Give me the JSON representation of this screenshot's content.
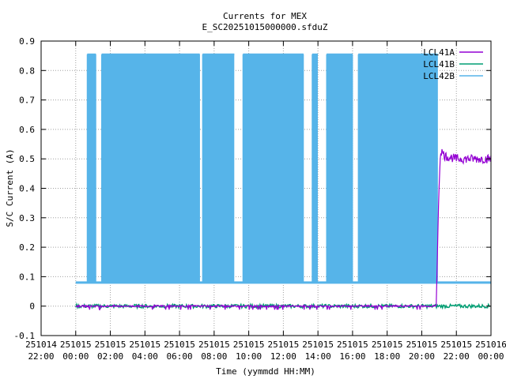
{
  "chart_data": {
    "type": "line",
    "title": "Currents for MEX",
    "subtitle": "E_SC20251015000000.sfduZ",
    "xlabel": "Time (yymmdd HH:MM)",
    "ylabel": "S/C Current (A)",
    "xlim": [
      "251014 22:00",
      "251016 00:00"
    ],
    "ylim": [
      -0.1,
      0.9
    ],
    "grid": true,
    "legend_position": "top-right",
    "x_ticks": [
      {
        "date": "251014",
        "time": "22:00"
      },
      {
        "date": "251015",
        "time": "00:00"
      },
      {
        "date": "251015",
        "time": "02:00"
      },
      {
        "date": "251015",
        "time": "04:00"
      },
      {
        "date": "251015",
        "time": "06:00"
      },
      {
        "date": "251015",
        "time": "08:00"
      },
      {
        "date": "251015",
        "time": "10:00"
      },
      {
        "date": "251015",
        "time": "12:00"
      },
      {
        "date": "251015",
        "time": "14:00"
      },
      {
        "date": "251015",
        "time": "16:00"
      },
      {
        "date": "251015",
        "time": "18:00"
      },
      {
        "date": "251015",
        "time": "20:00"
      },
      {
        "date": "251015",
        "time": "22:00"
      },
      {
        "date": "251016",
        "time": "00:00"
      }
    ],
    "y_ticks": [
      "-0.1",
      "0",
      "0.1",
      "0.2",
      "0.3",
      "0.4",
      "0.5",
      "0.6",
      "0.7",
      "0.8",
      "0.9"
    ],
    "series": [
      {
        "name": "LCL41A",
        "color": "#9400d3",
        "points": [
          [
            "251015 00:00",
            0.0
          ],
          [
            "251015 20:50",
            0.0
          ],
          [
            "251015 21:00",
            0.41
          ],
          [
            "251015 21:05",
            0.53
          ],
          [
            "251015 21:20",
            0.51
          ],
          [
            "251015 22:00",
            0.5
          ],
          [
            "251015 23:00",
            0.5
          ],
          [
            "251016 00:00",
            0.5
          ]
        ]
      },
      {
        "name": "LCL41B",
        "color": "#009e73",
        "points": [
          [
            "251015 00:00",
            0.0
          ],
          [
            "251015 12:00",
            0.0
          ],
          [
            "251016 00:00",
            0.0
          ]
        ]
      },
      {
        "name": "LCL42B",
        "color": "#56b4e9",
        "low": 0.08,
        "high": 0.855,
        "switching_segments": [
          [
            "251015 00:40",
            "251015 01:10"
          ],
          [
            "251015 01:30",
            "251015 07:10"
          ],
          [
            "251015 07:20",
            "251015 09:10"
          ],
          [
            "251015 09:40",
            "251015 13:10"
          ],
          [
            "251015 13:40",
            "251015 14:00"
          ],
          [
            "251015 14:30",
            "251015 16:00"
          ],
          [
            "251015 16:20",
            "251015 20:55"
          ]
        ],
        "points": [
          [
            "251015 00:00",
            0.08
          ],
          [
            "251015 20:55",
            0.08
          ],
          [
            "251015 21:00",
            0.08
          ],
          [
            "251016 00:00",
            0.08
          ]
        ]
      }
    ]
  }
}
